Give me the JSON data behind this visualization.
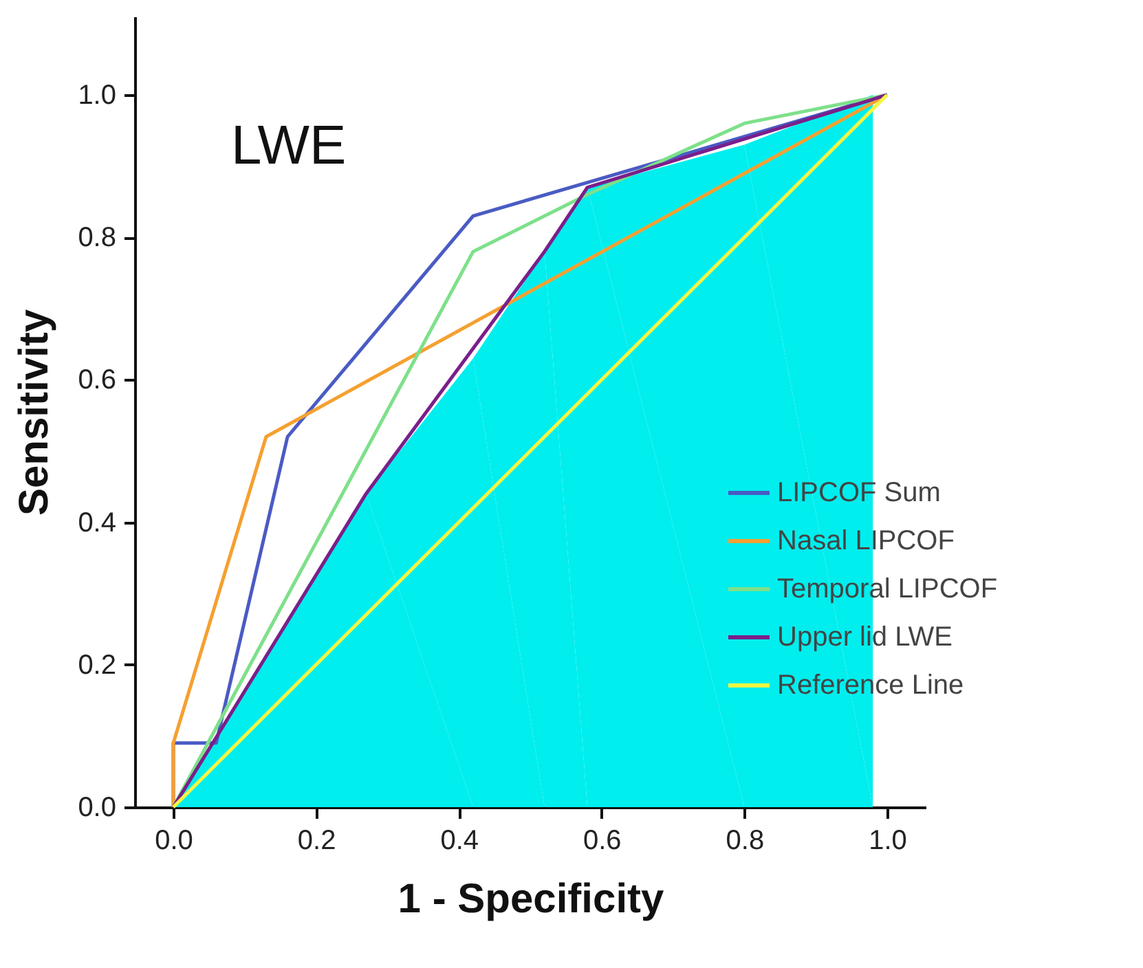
{
  "chart_data": {
    "type": "line",
    "annotations": [
      "LWE"
    ],
    "xlabel": "1 - Specificity",
    "ylabel": "Sensitivity",
    "xlim": [
      -0.054,
      1.054
    ],
    "ylim": [
      0,
      1.11
    ],
    "xticks": [
      {
        "value": 0,
        "label": "0.0"
      },
      {
        "value": 0.2,
        "label": "0.2"
      },
      {
        "value": 0.4,
        "label": "0.4"
      },
      {
        "value": 0.6,
        "label": "0.6"
      },
      {
        "value": 0.8,
        "label": "0.8"
      },
      {
        "value": 1,
        "label": "1.0"
      }
    ],
    "yticks": [
      {
        "value": 0,
        "label": "0.0"
      },
      {
        "value": 0.2,
        "label": "0.2"
      },
      {
        "value": 0.4,
        "label": "0.4"
      },
      {
        "value": 0.6,
        "label": "0.6"
      },
      {
        "value": 0.8,
        "label": "0.8"
      },
      {
        "value": 1,
        "label": "1.0"
      }
    ],
    "grid": false,
    "legend": "bottom right",
    "marker": "none",
    "series": [
      {
        "type": "area",
        "color": "#00eeee",
        "x": [
          0,
          0.27,
          0.42,
          0.52,
          0.58,
          0.8,
          0.98
        ],
        "values": [
          0,
          0.44,
          0.63,
          0.78,
          0.87,
          0.93,
          1
        ]
      },
      {
        "name": "LIPCOF Sum",
        "color": "#4a5bc4",
        "x": [
          0,
          0,
          0.06,
          0.16,
          0.42,
          1
        ],
        "values": [
          0,
          0.09,
          0.09,
          0.52,
          0.83,
          1
        ]
      },
      {
        "name": "Nasal LIPCOF",
        "color": "#f5a030",
        "x": [
          0,
          0,
          0.13,
          1
        ],
        "values": [
          0,
          0.09,
          0.52,
          1
        ]
      },
      {
        "name": "Temporal LIPCOF",
        "color": "#7ee08a",
        "x": [
          0,
          0.42,
          0.58,
          0.8,
          1
        ],
        "values": [
          0,
          0.78,
          0.86,
          0.96,
          1
        ]
      },
      {
        "name": "Upper lid LWE",
        "color": "#7a1f8a",
        "x": [
          0,
          0.27,
          0.52,
          0.58,
          1
        ],
        "values": [
          0,
          0.44,
          0.78,
          0.87,
          1
        ]
      },
      {
        "name": "Reference Line",
        "color": "#f5f542",
        "x": [
          0,
          1
        ],
        "values": [
          0,
          1
        ]
      }
    ]
  }
}
